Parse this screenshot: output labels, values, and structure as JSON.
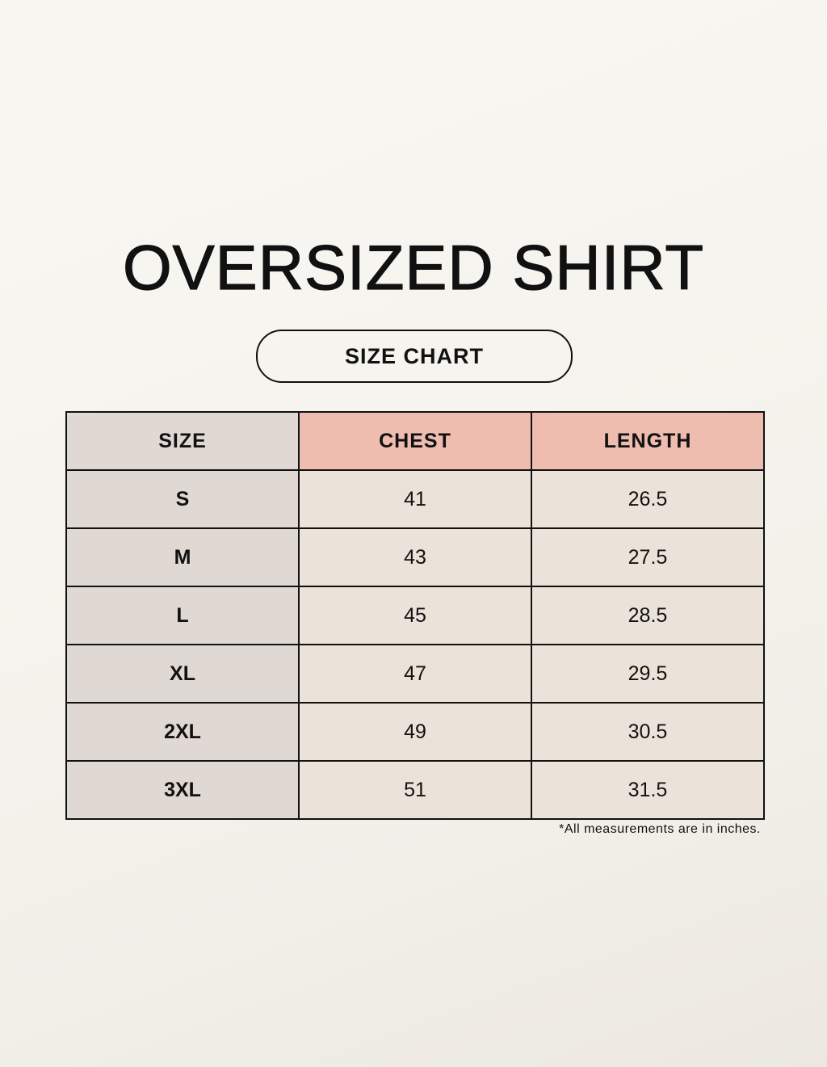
{
  "title": "OVERSIZED SHIRT",
  "subtitle": "SIZE CHART",
  "colors": {
    "size_column": "#e0d8d3",
    "header_highlight": "#efbcb0",
    "value_cells": "#ebe3d9",
    "background": "#f8f6f0"
  },
  "table": {
    "headers": [
      "SIZE",
      "CHEST",
      "LENGTH"
    ],
    "rows": [
      [
        "S",
        "41",
        "26.5"
      ],
      [
        "M",
        "43",
        "27.5"
      ],
      [
        "L",
        "45",
        "28.5"
      ],
      [
        "XL",
        "47",
        "29.5"
      ],
      [
        "2XL",
        "49",
        "30.5"
      ],
      [
        "3XL",
        "51",
        "31.5"
      ]
    ]
  },
  "footnote": "*All measurements are in inches."
}
